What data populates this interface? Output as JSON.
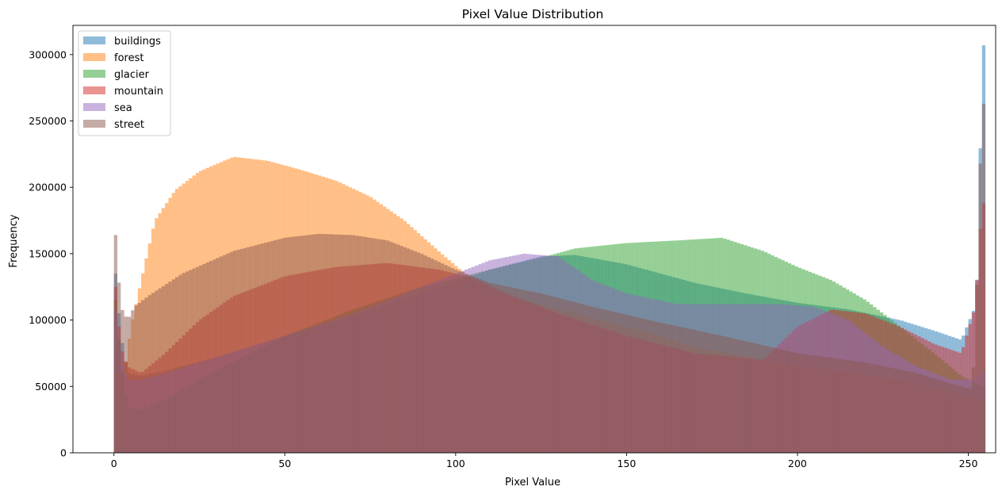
{
  "chart_data": {
    "type": "histogram",
    "title": "Pixel Value Distribution",
    "xlabel": "Pixel Value",
    "ylabel": "Frequency",
    "xlim": [
      -12,
      258
    ],
    "ylim": [
      0,
      322000
    ],
    "bins": 256,
    "alpha": 0.5,
    "grid": false,
    "legend_position": "top-left",
    "xticks": [
      0,
      50,
      100,
      150,
      200,
      250
    ],
    "yticks": [
      0,
      50000,
      100000,
      150000,
      200000,
      250000,
      300000
    ],
    "series": [
      {
        "name": "buildings",
        "color": "#1f77b4",
        "knots": [
          [
            0,
            150000
          ],
          [
            2,
            90000
          ],
          [
            4,
            60000
          ],
          [
            8,
            58000
          ],
          [
            15,
            62000
          ],
          [
            30,
            72000
          ],
          [
            50,
            88000
          ],
          [
            70,
            103000
          ],
          [
            90,
            120000
          ],
          [
            110,
            138000
          ],
          [
            125,
            148000
          ],
          [
            135,
            149000
          ],
          [
            150,
            142000
          ],
          [
            170,
            128000
          ],
          [
            185,
            120000
          ],
          [
            200,
            113000
          ],
          [
            215,
            108000
          ],
          [
            230,
            100000
          ],
          [
            240,
            92000
          ],
          [
            248,
            85000
          ],
          [
            252,
            110000
          ],
          [
            253,
            150000
          ],
          [
            254,
            307000
          ]
        ]
      },
      {
        "name": "forest",
        "color": "#ff7f0e",
        "knots": [
          [
            0,
            60000
          ],
          [
            3,
            60000
          ],
          [
            5,
            95000
          ],
          [
            8,
            130000
          ],
          [
            12,
            175000
          ],
          [
            18,
            198000
          ],
          [
            25,
            212000
          ],
          [
            35,
            223000
          ],
          [
            45,
            220000
          ],
          [
            55,
            213000
          ],
          [
            65,
            205000
          ],
          [
            75,
            193000
          ],
          [
            85,
            175000
          ],
          [
            95,
            152000
          ],
          [
            105,
            130000
          ],
          [
            115,
            118000
          ],
          [
            130,
            108000
          ],
          [
            150,
            95000
          ],
          [
            170,
            80000
          ],
          [
            190,
            70000
          ],
          [
            210,
            62000
          ],
          [
            230,
            55000
          ],
          [
            245,
            45000
          ],
          [
            254,
            40000
          ]
        ]
      },
      {
        "name": "glacier",
        "color": "#2ca02c",
        "knots": [
          [
            0,
            130000
          ],
          [
            2,
            70000
          ],
          [
            4,
            35000
          ],
          [
            8,
            32000
          ],
          [
            15,
            40000
          ],
          [
            30,
            62000
          ],
          [
            50,
            88000
          ],
          [
            70,
            108000
          ],
          [
            90,
            125000
          ],
          [
            110,
            138000
          ],
          [
            125,
            147000
          ],
          [
            135,
            154000
          ],
          [
            150,
            158000
          ],
          [
            165,
            160000
          ],
          [
            178,
            162000
          ],
          [
            190,
            152000
          ],
          [
            200,
            140000
          ],
          [
            210,
            130000
          ],
          [
            220,
            115000
          ],
          [
            230,
            95000
          ],
          [
            240,
            75000
          ],
          [
            248,
            58000
          ],
          [
            254,
            50000
          ]
        ]
      },
      {
        "name": "mountain",
        "color": "#d62728",
        "knots": [
          [
            0,
            140000
          ],
          [
            2,
            80000
          ],
          [
            4,
            65000
          ],
          [
            8,
            60000
          ],
          [
            15,
            75000
          ],
          [
            25,
            100000
          ],
          [
            35,
            118000
          ],
          [
            50,
            133000
          ],
          [
            65,
            140000
          ],
          [
            80,
            143000
          ],
          [
            95,
            138000
          ],
          [
            105,
            132000
          ],
          [
            115,
            120000
          ],
          [
            130,
            105000
          ],
          [
            150,
            88000
          ],
          [
            170,
            75000
          ],
          [
            190,
            70000
          ],
          [
            200,
            95000
          ],
          [
            210,
            108000
          ],
          [
            220,
            105000
          ],
          [
            230,
            95000
          ],
          [
            240,
            82000
          ],
          [
            248,
            75000
          ],
          [
            252,
            110000
          ],
          [
            254,
            188000
          ]
        ]
      },
      {
        "name": "sea",
        "color": "#9467bd",
        "knots": [
          [
            0,
            120000
          ],
          [
            2,
            70000
          ],
          [
            4,
            55000
          ],
          [
            8,
            55000
          ],
          [
            15,
            60000
          ],
          [
            30,
            72000
          ],
          [
            50,
            88000
          ],
          [
            70,
            105000
          ],
          [
            90,
            125000
          ],
          [
            110,
            145000
          ],
          [
            120,
            150000
          ],
          [
            130,
            148000
          ],
          [
            140,
            130000
          ],
          [
            150,
            120000
          ],
          [
            165,
            112000
          ],
          [
            180,
            112000
          ],
          [
            195,
            112000
          ],
          [
            205,
            110000
          ],
          [
            215,
            100000
          ],
          [
            225,
            80000
          ],
          [
            235,
            65000
          ],
          [
            245,
            55000
          ],
          [
            252,
            55000
          ],
          [
            254,
            60000
          ]
        ]
      },
      {
        "name": "street",
        "color": "#8c564b",
        "knots": [
          [
            0,
            182000
          ],
          [
            2,
            110000
          ],
          [
            4,
            100000
          ],
          [
            6,
            110000
          ],
          [
            10,
            118000
          ],
          [
            20,
            135000
          ],
          [
            35,
            152000
          ],
          [
            50,
            162000
          ],
          [
            60,
            165000
          ],
          [
            70,
            164000
          ],
          [
            80,
            160000
          ],
          [
            90,
            150000
          ],
          [
            100,
            138000
          ],
          [
            110,
            128000
          ],
          [
            125,
            120000
          ],
          [
            140,
            110000
          ],
          [
            160,
            98000
          ],
          [
            180,
            87000
          ],
          [
            200,
            75000
          ],
          [
            220,
            68000
          ],
          [
            235,
            60000
          ],
          [
            245,
            52000
          ],
          [
            251,
            48000
          ],
          [
            252,
            80000
          ],
          [
            254,
            263000
          ]
        ]
      }
    ]
  }
}
